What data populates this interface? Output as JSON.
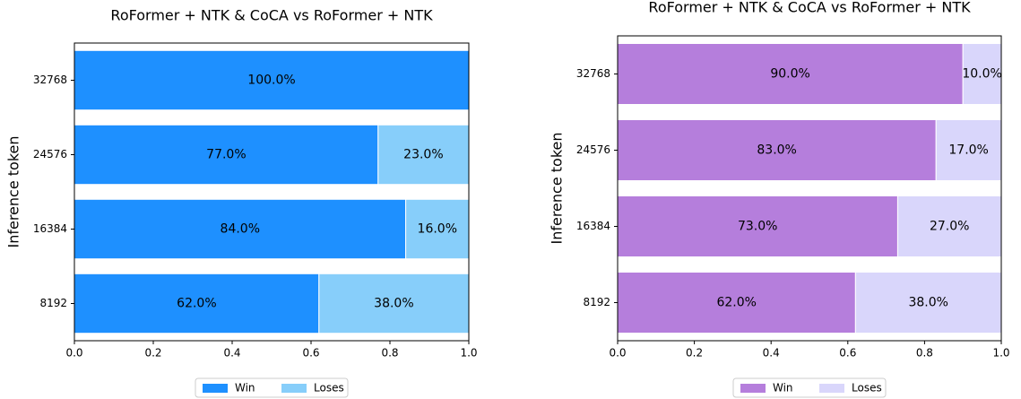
{
  "chart_data": [
    {
      "type": "barh_stacked",
      "title": "RoFormer + NTK & CoCA  vs  RoFormer + NTK",
      "ylabel": "Inference token",
      "categories": [
        "8192",
        "16384",
        "24576",
        "32768"
      ],
      "series": [
        {
          "name": "Win",
          "color": "#1e90ff",
          "values": [
            0.62,
            0.84,
            0.77,
            1.0
          ],
          "value_labels": [
            "62.0%",
            "84.0%",
            "77.0%",
            "100.0%"
          ]
        },
        {
          "name": "Loses",
          "color": "#87cefa",
          "values": [
            0.38,
            0.16,
            0.23,
            0.0
          ],
          "value_labels": [
            "38.0%",
            "16.0%",
            "23.0%",
            null
          ]
        }
      ],
      "xlim": [
        0,
        1
      ],
      "xticks": [
        {
          "value": 0,
          "label": "0.0"
        },
        {
          "value": 0.2,
          "label": "0.2"
        },
        {
          "value": 0.4,
          "label": "0.4"
        },
        {
          "value": 0.6,
          "label": "0.6"
        },
        {
          "value": 0.8,
          "label": "0.8"
        },
        {
          "value": 1,
          "label": "1.0"
        }
      ],
      "legend": "lower center"
    },
    {
      "type": "barh_stacked",
      "title": "RoFormer + NTK & CoCA  vs  RoFormer + NTK",
      "ylabel": "Inference token",
      "categories": [
        "8192",
        "16384",
        "24576",
        "32768"
      ],
      "series": [
        {
          "name": "Win",
          "color": "#b57edc",
          "values": [
            0.62,
            0.73,
            0.83,
            0.9
          ],
          "value_labels": [
            "62.0%",
            "73.0%",
            "83.0%",
            "90.0%"
          ]
        },
        {
          "name": "Loses",
          "color": "#d9d6fb",
          "values": [
            0.38,
            0.27,
            0.17,
            0.1
          ],
          "value_labels": [
            "38.0%",
            "27.0%",
            "17.0%",
            "10.0%"
          ]
        }
      ],
      "xlim": [
        0,
        1
      ],
      "xticks": [
        {
          "value": 0,
          "label": "0.0"
        },
        {
          "value": 0.2,
          "label": "0.2"
        },
        {
          "value": 0.4,
          "label": "0.4"
        },
        {
          "value": 0.6,
          "label": "0.6"
        },
        {
          "value": 0.8,
          "label": "0.8"
        },
        {
          "value": 1,
          "label": "1.0"
        }
      ],
      "legend": "lower center"
    }
  ]
}
